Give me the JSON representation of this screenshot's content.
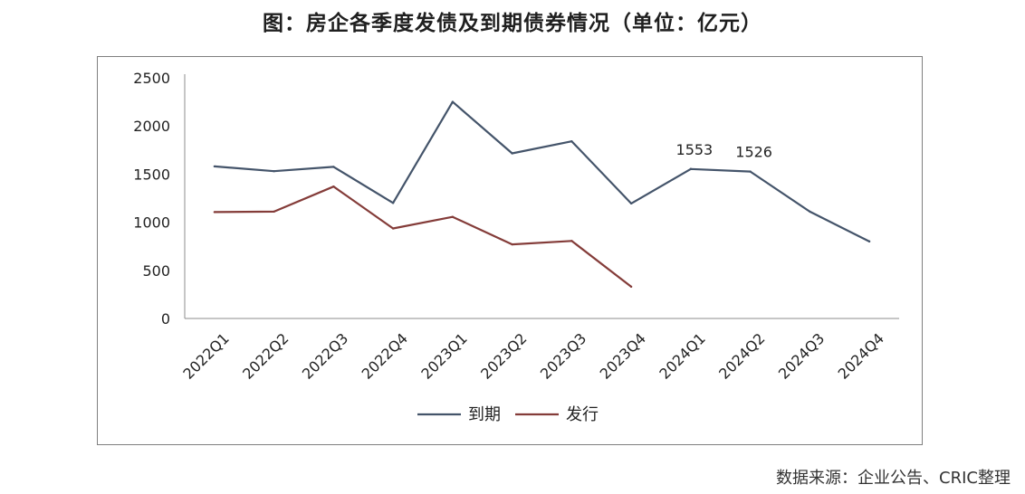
{
  "title": "图：房企各季度发债及到期债券情况（单位：亿元）",
  "source": "数据来源：企业公告、CRIC整理",
  "chart_data": {
    "type": "line",
    "title": "图：房企各季度发债及到期债券情况（单位：亿元）",
    "categories": [
      "2022Q1",
      "2022Q2",
      "2022Q3",
      "2022Q4",
      "2023Q1",
      "2023Q2",
      "2023Q3",
      "2023Q4",
      "2024Q1",
      "2024Q2",
      "2024Q3",
      "2024Q4"
    ],
    "series": [
      {
        "name": "到期",
        "color": "#44546a",
        "values": [
          1580,
          1530,
          1575,
          1200,
          2250,
          1715,
          1840,
          1195,
          1553,
          1526,
          1110,
          800
        ]
      },
      {
        "name": "发行",
        "color": "#843c39",
        "values": [
          1105,
          1110,
          1370,
          935,
          1055,
          770,
          805,
          330,
          null,
          null,
          null,
          null
        ]
      }
    ],
    "data_labels": [
      {
        "series": "到期",
        "category": "2024Q1",
        "text": "1553"
      },
      {
        "series": "到期",
        "category": "2024Q2",
        "text": "1526"
      }
    ],
    "ylim": [
      0,
      2500
    ],
    "yticks": [
      0,
      500,
      1000,
      1500,
      2000,
      2500
    ],
    "xlabel": "",
    "ylabel": "",
    "grid": false,
    "legend": "bottom"
  }
}
